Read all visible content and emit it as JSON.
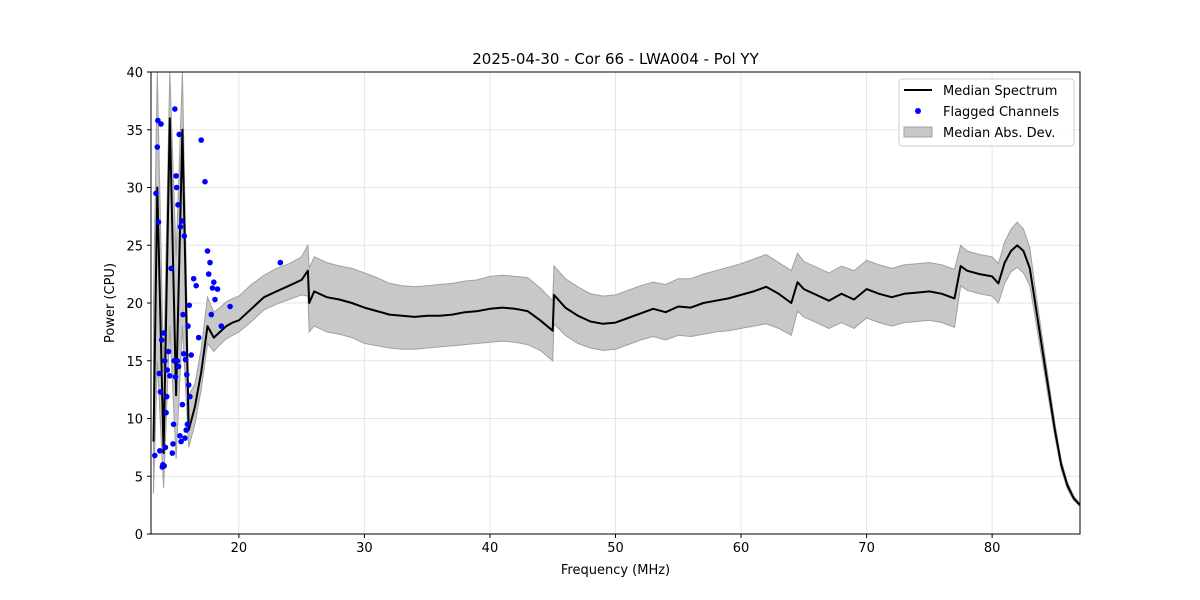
{
  "chart_data": {
    "type": "line",
    "title": "2025-04-30 - Cor 66 - LWA004 - Pol YY",
    "xlabel": "Frequency (MHz)",
    "ylabel": "Power (CPU)",
    "xlim": [
      13.0,
      87.0
    ],
    "ylim": [
      0,
      40
    ],
    "xticks": [
      20,
      30,
      40,
      50,
      60,
      70,
      80
    ],
    "yticks": [
      0,
      5,
      10,
      15,
      20,
      25,
      30,
      35,
      40
    ],
    "xtick_labels": [
      "20",
      "30",
      "40",
      "50",
      "60",
      "70",
      "80"
    ],
    "ytick_labels": [
      "0",
      "5",
      "10",
      "15",
      "20",
      "25",
      "30",
      "35",
      "40"
    ],
    "grid": true,
    "legend_position": "top-right",
    "legend": [
      "Median Spectrum",
      "Flagged Channels",
      "Median Abs. Dev."
    ],
    "colors": {
      "median": "#000000",
      "flagged": "#0000ff",
      "band_fill": "#c8c8c8",
      "band_edge": "#a0a0a0",
      "grid": "#e6e6e6"
    },
    "series": [
      {
        "name": "Median Spectrum",
        "x": [
          13.2,
          13.5,
          14.0,
          14.5,
          15.0,
          15.5,
          16.0,
          16.5,
          17.0,
          17.5,
          18.0,
          18.5,
          19.0,
          19.5,
          20.0,
          21.0,
          22.0,
          23.0,
          24.0,
          25.0,
          25.5,
          25.6,
          26.0,
          27.0,
          28.0,
          29.0,
          30.0,
          31.0,
          32.0,
          33.0,
          34.0,
          35.0,
          36.0,
          37.0,
          38.0,
          39.0,
          40.0,
          41.0,
          42.0,
          43.0,
          44.0,
          45.0,
          45.1,
          46.0,
          47.0,
          48.0,
          49.0,
          50.0,
          51.0,
          52.0,
          53.0,
          54.0,
          55.0,
          56.0,
          57.0,
          58.0,
          59.0,
          60.0,
          61.0,
          62.0,
          63.0,
          64.0,
          64.5,
          65.0,
          66.0,
          67.0,
          68.0,
          69.0,
          70.0,
          71.0,
          72.0,
          73.0,
          74.0,
          75.0,
          76.0,
          77.0,
          77.5,
          78.0,
          79.0,
          80.0,
          80.5,
          81.0,
          81.5,
          82.0,
          82.5,
          83.0,
          83.5,
          84.0,
          84.5,
          85.0,
          85.5,
          86.0,
          86.5,
          87.0
        ],
        "y": [
          8.0,
          30.0,
          7.0,
          36.0,
          12.0,
          35.0,
          9.0,
          11.0,
          14.0,
          18.0,
          17.0,
          17.5,
          18.0,
          18.3,
          18.5,
          19.5,
          20.5,
          21.0,
          21.5,
          22.0,
          22.8,
          20.0,
          21.0,
          20.5,
          20.3,
          20.0,
          19.6,
          19.3,
          19.0,
          18.9,
          18.8,
          18.9,
          18.9,
          19.0,
          19.2,
          19.3,
          19.5,
          19.6,
          19.5,
          19.3,
          18.5,
          17.6,
          20.7,
          19.6,
          18.9,
          18.4,
          18.2,
          18.3,
          18.7,
          19.1,
          19.5,
          19.2,
          19.7,
          19.6,
          20.0,
          20.2,
          20.4,
          20.7,
          21.0,
          21.4,
          20.8,
          20.0,
          21.8,
          21.2,
          20.7,
          20.2,
          20.8,
          20.3,
          21.2,
          20.8,
          20.5,
          20.8,
          20.9,
          21.0,
          20.8,
          20.4,
          23.2,
          22.8,
          22.5,
          22.3,
          21.7,
          23.5,
          24.5,
          25.0,
          24.5,
          23.0,
          19.5,
          16.0,
          12.5,
          9.0,
          6.0,
          4.2,
          3.1,
          2.5
        ]
      },
      {
        "name": "Median Abs. Dev.",
        "x": [
          13.2,
          13.5,
          14.0,
          14.5,
          15.0,
          15.5,
          16.0,
          16.5,
          17.0,
          17.5,
          18.0,
          18.5,
          19.0,
          19.5,
          20.0,
          21.0,
          22.0,
          23.0,
          24.0,
          25.0,
          25.5,
          25.6,
          26.0,
          27.0,
          28.0,
          29.0,
          30.0,
          31.0,
          32.0,
          33.0,
          34.0,
          35.0,
          36.0,
          37.0,
          38.0,
          39.0,
          40.0,
          41.0,
          42.0,
          43.0,
          44.0,
          45.0,
          45.1,
          46.0,
          47.0,
          48.0,
          49.0,
          50.0,
          51.0,
          52.0,
          53.0,
          54.0,
          55.0,
          56.0,
          57.0,
          58.0,
          59.0,
          60.0,
          61.0,
          62.0,
          63.0,
          64.0,
          64.5,
          65.0,
          66.0,
          67.0,
          68.0,
          69.0,
          70.0,
          71.0,
          72.0,
          73.0,
          74.0,
          75.0,
          76.0,
          77.0,
          77.5,
          78.0,
          79.0,
          80.0,
          80.5,
          81.0,
          81.5,
          82.0,
          82.5,
          83.0,
          83.5,
          84.0,
          84.5,
          85.0,
          85.5,
          86.0,
          86.5,
          87.0
        ],
        "lower": [
          3.5,
          15.0,
          4.0,
          18.0,
          6.5,
          18.0,
          7.5,
          9.5,
          12.5,
          16.5,
          15.8,
          16.4,
          16.9,
          17.2,
          17.5,
          18.4,
          19.4,
          19.9,
          20.3,
          20.7,
          20.6,
          17.5,
          18.0,
          17.5,
          17.3,
          17.0,
          16.5,
          16.3,
          16.1,
          16.0,
          16.0,
          16.1,
          16.2,
          16.3,
          16.4,
          16.5,
          16.6,
          16.7,
          16.6,
          16.4,
          15.9,
          15.0,
          18.2,
          17.2,
          16.5,
          16.1,
          15.9,
          16.0,
          16.4,
          16.8,
          17.1,
          16.8,
          17.2,
          17.1,
          17.3,
          17.5,
          17.6,
          17.8,
          18.0,
          18.2,
          17.8,
          17.2,
          19.3,
          18.8,
          18.3,
          17.8,
          18.3,
          17.8,
          18.7,
          18.3,
          18.0,
          18.3,
          18.4,
          18.5,
          18.3,
          17.9,
          21.5,
          21.1,
          20.8,
          20.6,
          20.0,
          21.7,
          22.7,
          23.1,
          22.6,
          21.5,
          18.3,
          15.0,
          11.7,
          8.4,
          5.6,
          3.9,
          2.9,
          2.4
        ],
        "upper": [
          20.0,
          40.0,
          14.0,
          40.0,
          24.0,
          40.0,
          12.0,
          13.0,
          16.0,
          20.5,
          19.2,
          19.6,
          20.1,
          20.4,
          20.6,
          21.6,
          22.4,
          23.0,
          23.4,
          24.0,
          25.0,
          23.0,
          24.0,
          23.5,
          23.2,
          23.0,
          22.6,
          22.2,
          21.7,
          21.5,
          21.4,
          21.5,
          21.6,
          21.7,
          21.9,
          22.0,
          22.3,
          22.4,
          22.3,
          22.2,
          21.3,
          20.2,
          23.2,
          22.1,
          21.4,
          20.8,
          20.6,
          20.7,
          21.1,
          21.5,
          21.8,
          21.6,
          22.1,
          22.1,
          22.5,
          22.8,
          23.1,
          23.4,
          23.8,
          24.2,
          23.5,
          22.8,
          24.3,
          23.6,
          23.1,
          22.6,
          23.2,
          22.8,
          23.7,
          23.3,
          23.0,
          23.3,
          23.4,
          23.5,
          23.3,
          22.9,
          25.0,
          24.5,
          24.2,
          24.0,
          23.4,
          25.3,
          26.4,
          27.0,
          26.4,
          24.8,
          20.7,
          17.0,
          13.3,
          9.6,
          6.4,
          4.5,
          3.3,
          2.6
        ]
      },
      {
        "name": "Flagged Channels",
        "x": [
          13.3,
          13.4,
          13.5,
          13.55,
          13.6,
          13.65,
          13.7,
          13.75,
          13.8,
          13.85,
          13.9,
          13.95,
          14.0,
          14.05,
          14.1,
          14.15,
          14.2,
          14.25,
          14.3,
          14.4,
          14.5,
          14.6,
          14.7,
          14.75,
          14.8,
          14.85,
          14.9,
          14.95,
          15.0,
          15.05,
          15.1,
          15.15,
          15.2,
          15.25,
          15.3,
          15.35,
          15.4,
          15.45,
          15.5,
          15.55,
          15.6,
          15.65,
          15.7,
          15.75,
          15.8,
          15.85,
          15.9,
          15.95,
          16.0,
          16.05,
          16.1,
          16.2,
          16.4,
          16.6,
          16.8,
          17.0,
          17.3,
          17.5,
          17.6,
          17.7,
          17.8,
          17.9,
          18.0,
          18.1,
          18.3,
          18.6,
          19.3,
          23.3
        ],
        "y": [
          6.8,
          29.5,
          33.5,
          35.8,
          27.0,
          13.9,
          7.2,
          12.3,
          35.5,
          16.8,
          5.8,
          6.0,
          17.4,
          5.9,
          15.0,
          7.5,
          10.5,
          11.9,
          14.2,
          15.8,
          13.7,
          23.0,
          7.0,
          7.8,
          9.5,
          15.0,
          36.8,
          13.6,
          31.0,
          30.0,
          15.0,
          28.5,
          14.5,
          34.6,
          8.5,
          26.6,
          8.0,
          27.1,
          11.2,
          19.0,
          15.6,
          25.8,
          8.3,
          15.1,
          9.0,
          13.8,
          9.5,
          18.0,
          12.9,
          19.8,
          11.9,
          15.5,
          22.1,
          21.5,
          17.0,
          34.1,
          30.5,
          24.5,
          22.5,
          23.5,
          19.0,
          21.3,
          21.8,
          20.3,
          21.2,
          18.0,
          19.7,
          23.5
        ]
      }
    ]
  }
}
